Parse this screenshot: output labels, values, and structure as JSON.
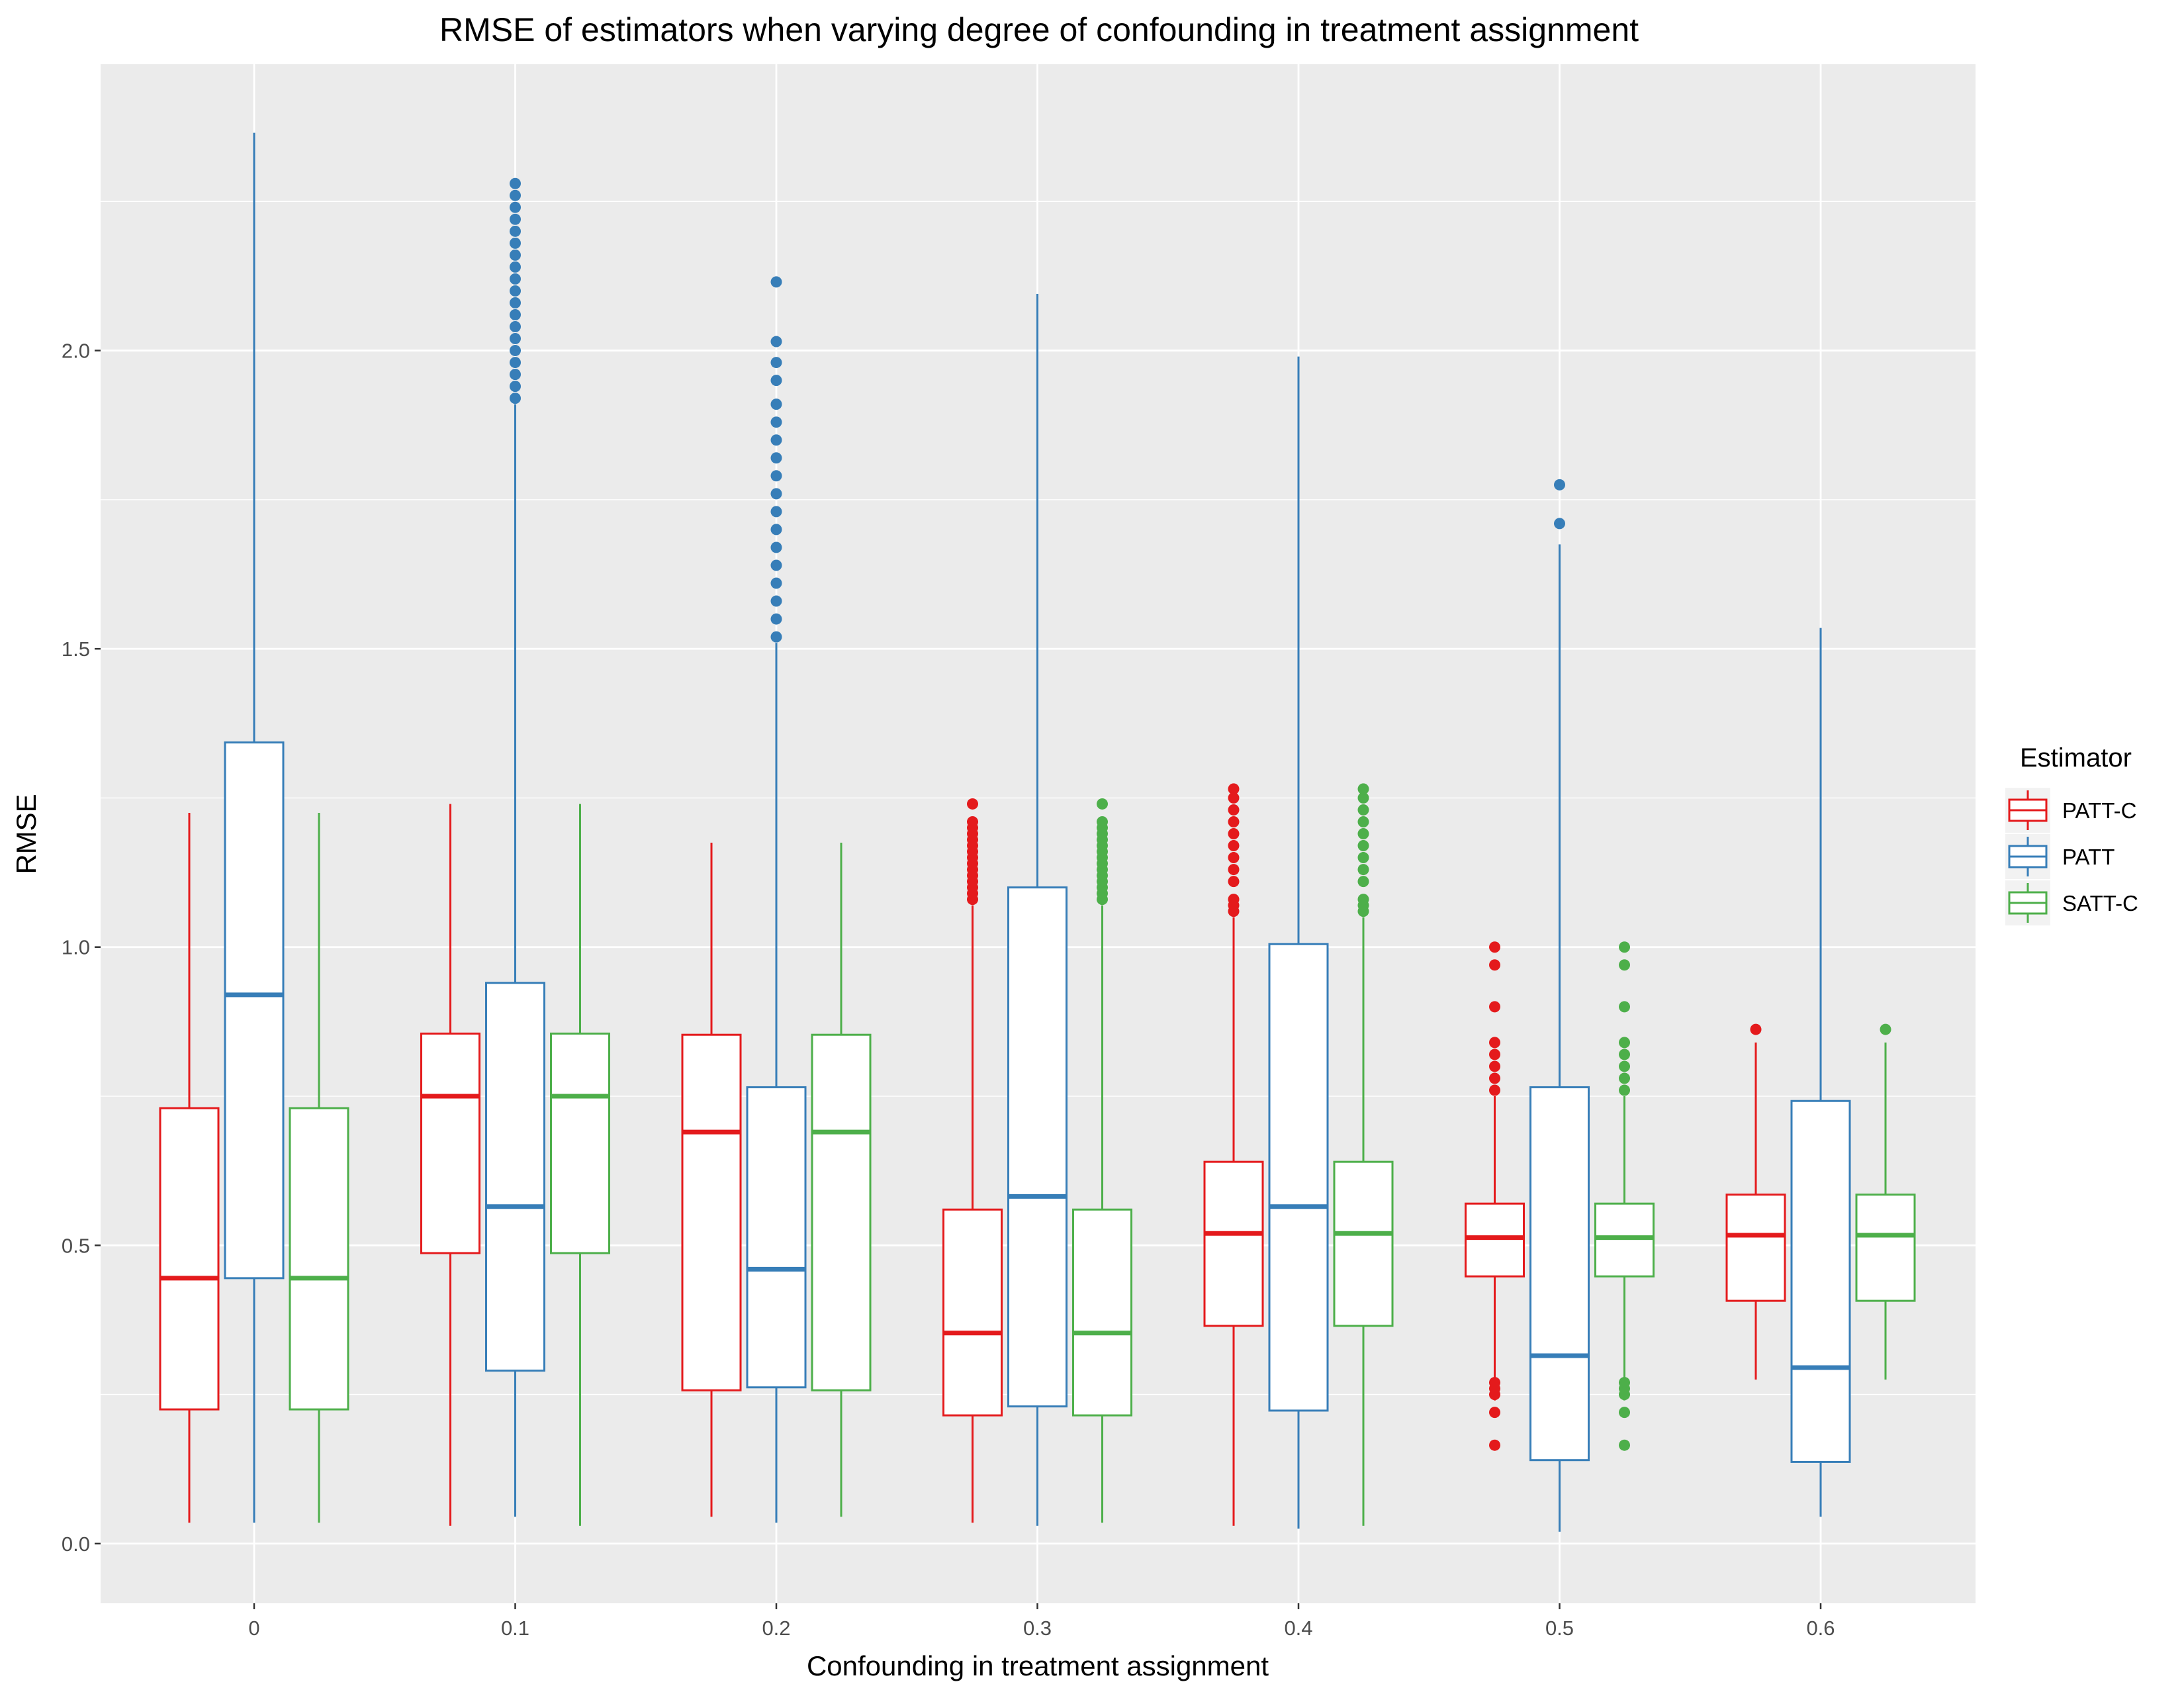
{
  "chart_data": {
    "type": "boxplot",
    "title": "RMSE of estimators when varying degree of confounding in treatment assignment",
    "xlabel": "Confounding in treatment assignment",
    "ylabel": "RMSE",
    "categories": [
      "0",
      "0.1",
      "0.2",
      "0.3",
      "0.4",
      "0.5",
      "0.6"
    ],
    "y_ticks": [
      "0.0",
      "0.5",
      "1.0",
      "1.5",
      "2.0"
    ],
    "ylim": [
      -0.1,
      2.48
    ],
    "grid": true,
    "legend": {
      "title": "Estimator",
      "position": "right"
    },
    "series": [
      {
        "name": "PATT-C",
        "color": "#e41a1c",
        "boxes": [
          {
            "lower": 0.035,
            "q1": 0.225,
            "median": 0.445,
            "q3": 0.73,
            "upper": 1.225,
            "outliers": []
          },
          {
            "lower": 0.03,
            "q1": 0.487,
            "median": 0.75,
            "q3": 0.855,
            "upper": 1.24,
            "outliers": []
          },
          {
            "lower": 0.045,
            "q1": 0.257,
            "median": 0.69,
            "q3": 0.853,
            "upper": 1.175,
            "outliers": []
          },
          {
            "lower": 0.035,
            "q1": 0.215,
            "median": 0.353,
            "q3": 0.56,
            "upper": 1.07,
            "outliers": [
              1.08,
              1.09,
              1.1,
              1.11,
              1.12,
              1.13,
              1.14,
              1.15,
              1.16,
              1.17,
              1.18,
              1.19,
              1.2,
              1.21,
              1.24
            ]
          },
          {
            "lower": 0.03,
            "q1": 0.365,
            "median": 0.52,
            "q3": 0.64,
            "upper": 1.05,
            "outliers": [
              1.06,
              1.07,
              1.08,
              1.11,
              1.13,
              1.15,
              1.17,
              1.19,
              1.21,
              1.23,
              1.25,
              1.265
            ]
          },
          {
            "lower": 0.24,
            "q1": 0.448,
            "median": 0.513,
            "q3": 0.57,
            "upper": 0.75,
            "outliers": [
              0.165,
              0.22,
              0.25,
              0.26,
              0.27,
              0.76,
              0.78,
              0.8,
              0.82,
              0.84,
              0.9,
              0.97,
              1.0
            ]
          },
          {
            "lower": 0.275,
            "q1": 0.407,
            "median": 0.517,
            "q3": 0.585,
            "upper": 0.84,
            "outliers": [
              0.862
            ]
          }
        ]
      },
      {
        "name": "PATT",
        "color": "#377eb8",
        "boxes": [
          {
            "lower": 0.035,
            "q1": 0.445,
            "median": 0.92,
            "q3": 1.343,
            "upper": 2.365,
            "outliers": []
          },
          {
            "lower": 0.045,
            "q1": 0.29,
            "median": 0.565,
            "q3": 0.94,
            "upper": 1.91,
            "outliers": [
              1.92,
              1.94,
              1.96,
              1.98,
              2.0,
              2.02,
              2.04,
              2.06,
              2.08,
              2.1,
              2.12,
              2.14,
              2.16,
              2.18,
              2.2,
              2.22,
              2.24,
              2.26,
              2.28
            ]
          },
          {
            "lower": 0.035,
            "q1": 0.262,
            "median": 0.46,
            "q3": 0.765,
            "upper": 1.51,
            "outliers": [
              1.52,
              1.55,
              1.58,
              1.61,
              1.64,
              1.67,
              1.7,
              1.73,
              1.76,
              1.79,
              1.82,
              1.85,
              1.88,
              1.91,
              1.95,
              1.98,
              2.015,
              2.115
            ]
          },
          {
            "lower": 0.03,
            "q1": 0.23,
            "median": 0.582,
            "q3": 1.1,
            "upper": 2.095,
            "outliers": []
          },
          {
            "lower": 0.025,
            "q1": 0.223,
            "median": 0.565,
            "q3": 1.005,
            "upper": 1.99,
            "outliers": []
          },
          {
            "lower": 0.02,
            "q1": 0.14,
            "median": 0.315,
            "q3": 0.765,
            "upper": 1.675,
            "outliers": [
              1.71,
              1.775
            ]
          },
          {
            "lower": 0.045,
            "q1": 0.137,
            "median": 0.295,
            "q3": 0.742,
            "upper": 1.535,
            "outliers": []
          }
        ]
      },
      {
        "name": "SATT-C",
        "color": "#4daf4a",
        "boxes": [
          {
            "lower": 0.035,
            "q1": 0.225,
            "median": 0.445,
            "q3": 0.73,
            "upper": 1.225,
            "outliers": []
          },
          {
            "lower": 0.03,
            "q1": 0.487,
            "median": 0.75,
            "q3": 0.855,
            "upper": 1.24,
            "outliers": []
          },
          {
            "lower": 0.045,
            "q1": 0.257,
            "median": 0.69,
            "q3": 0.853,
            "upper": 1.175,
            "outliers": []
          },
          {
            "lower": 0.035,
            "q1": 0.215,
            "median": 0.353,
            "q3": 0.56,
            "upper": 1.07,
            "outliers": [
              1.08,
              1.09,
              1.1,
              1.11,
              1.12,
              1.13,
              1.14,
              1.15,
              1.16,
              1.17,
              1.18,
              1.19,
              1.2,
              1.21,
              1.24
            ]
          },
          {
            "lower": 0.03,
            "q1": 0.365,
            "median": 0.52,
            "q3": 0.64,
            "upper": 1.05,
            "outliers": [
              1.06,
              1.07,
              1.08,
              1.11,
              1.13,
              1.15,
              1.17,
              1.19,
              1.21,
              1.23,
              1.25,
              1.265
            ]
          },
          {
            "lower": 0.24,
            "q1": 0.448,
            "median": 0.513,
            "q3": 0.57,
            "upper": 0.75,
            "outliers": [
              0.165,
              0.22,
              0.25,
              0.26,
              0.27,
              0.76,
              0.78,
              0.8,
              0.82,
              0.84,
              0.9,
              0.97,
              1.0
            ]
          },
          {
            "lower": 0.275,
            "q1": 0.407,
            "median": 0.517,
            "q3": 0.585,
            "upper": 0.84,
            "outliers": [
              0.862
            ]
          }
        ]
      }
    ]
  }
}
